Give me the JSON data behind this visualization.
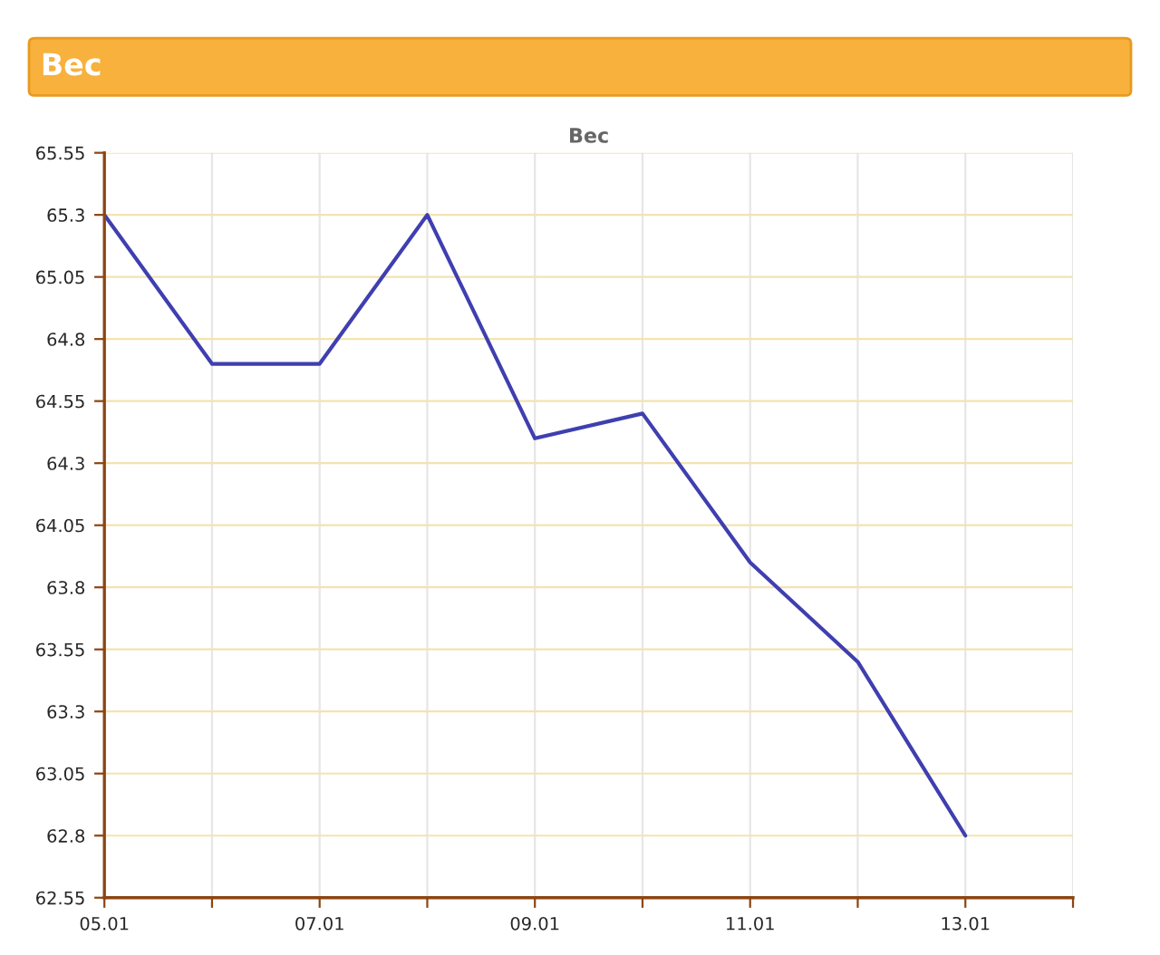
{
  "chart_data": {
    "type": "line",
    "title": "Вес",
    "subtitle": "Вес",
    "categories": [
      "05.01",
      null,
      "07.01",
      null,
      "09.01",
      null,
      "11.01",
      null,
      "13.01",
      null
    ],
    "series": [
      {
        "color": "#3f3fb0",
        "values": [
          65.3,
          64.7,
          64.7,
          65.3,
          64.4,
          64.5,
          63.9,
          63.5,
          62.8,
          null
        ]
      }
    ],
    "ylim": [
      62.55,
      65.55
    ],
    "yticks": [
      62.55,
      62.8,
      63.05,
      63.3,
      63.55,
      63.8,
      64.05,
      64.3,
      64.55,
      64.8,
      65.05,
      65.3,
      65.55
    ],
    "grid": true,
    "marker": "none",
    "line_style": "solid",
    "legend": false
  }
}
